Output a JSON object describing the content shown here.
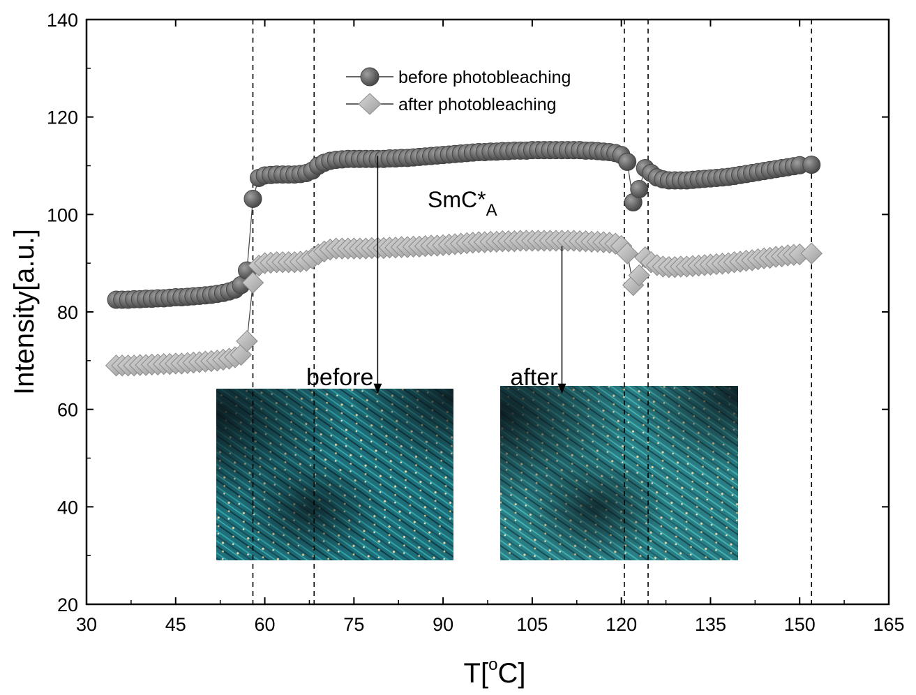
{
  "chart_data": {
    "type": "scatter",
    "xlabel_main": "T[",
    "xlabel_sup": "o",
    "xlabel_end": "C]",
    "ylabel": "Intensity[a.u.]",
    "xlim": [
      30,
      165
    ],
    "ylim": [
      20,
      140
    ],
    "x_ticks": [
      30,
      45,
      60,
      75,
      90,
      105,
      120,
      135,
      150,
      165
    ],
    "y_ticks": [
      20,
      40,
      60,
      80,
      100,
      120,
      140
    ],
    "grid": false,
    "legend_position": "top-center",
    "vlines": [
      58.0,
      68.3,
      120.5,
      124.5,
      152.0
    ],
    "phase_label": {
      "main": "SmC*",
      "sub": "A",
      "x": 87,
      "y": 102
    },
    "annotations": [
      {
        "text": "before",
        "arrow_x": 79,
        "arrow_from_y": 112,
        "arrow_to_y": 65
      },
      {
        "text": "after",
        "arrow_x": 110,
        "arrow_from_y": 93.5,
        "arrow_to_y": 65
      }
    ],
    "series": [
      {
        "name": "before photobleaching",
        "marker": "circle",
        "color": "#6e6e6e",
        "points": [
          [
            35,
            82.5
          ],
          [
            36,
            82.5
          ],
          [
            37,
            82.5
          ],
          [
            38,
            82.6
          ],
          [
            39,
            82.6
          ],
          [
            40,
            82.7
          ],
          [
            41,
            82.7
          ],
          [
            42,
            82.8
          ],
          [
            43,
            82.8
          ],
          [
            44,
            82.9
          ],
          [
            45,
            83.0
          ],
          [
            46,
            83.0
          ],
          [
            47,
            83.1
          ],
          [
            48,
            83.2
          ],
          [
            49,
            83.3
          ],
          [
            50,
            83.4
          ],
          [
            51,
            83.5
          ],
          [
            52,
            83.7
          ],
          [
            53,
            83.9
          ],
          [
            54,
            84.2
          ],
          [
            55,
            84.6
          ],
          [
            56,
            85.5
          ],
          [
            57,
            88.5
          ],
          [
            58,
            103.2
          ],
          [
            59,
            107.5
          ],
          [
            60,
            108.0
          ],
          [
            61,
            108.1
          ],
          [
            62,
            108.2
          ],
          [
            63,
            108.2
          ],
          [
            64,
            108.2
          ],
          [
            65,
            108.2
          ],
          [
            66,
            108.3
          ],
          [
            67,
            108.5
          ],
          [
            68,
            109.0
          ],
          [
            69,
            110.0
          ],
          [
            70,
            110.6
          ],
          [
            71,
            111.0
          ],
          [
            72,
            111.2
          ],
          [
            73,
            111.3
          ],
          [
            74,
            111.4
          ],
          [
            75,
            111.4
          ],
          [
            76,
            111.4
          ],
          [
            77,
            111.4
          ],
          [
            78,
            111.4
          ],
          [
            79,
            111.4
          ],
          [
            80,
            111.4
          ],
          [
            81,
            111.5
          ],
          [
            82,
            111.5
          ],
          [
            83,
            111.6
          ],
          [
            84,
            111.6
          ],
          [
            85,
            111.7
          ],
          [
            86,
            111.8
          ],
          [
            87,
            111.9
          ],
          [
            88,
            112.0
          ],
          [
            89,
            112.1
          ],
          [
            90,
            112.2
          ],
          [
            91,
            112.3
          ],
          [
            92,
            112.4
          ],
          [
            93,
            112.5
          ],
          [
            94,
            112.6
          ],
          [
            95,
            112.7
          ],
          [
            96,
            112.8
          ],
          [
            97,
            112.8
          ],
          [
            98,
            112.9
          ],
          [
            99,
            112.9
          ],
          [
            100,
            113.0
          ],
          [
            101,
            113.0
          ],
          [
            102,
            113.1
          ],
          [
            103,
            113.1
          ],
          [
            104,
            113.1
          ],
          [
            105,
            113.2
          ],
          [
            106,
            113.2
          ],
          [
            107,
            113.2
          ],
          [
            108,
            113.2
          ],
          [
            109,
            113.2
          ],
          [
            110,
            113.2
          ],
          [
            111,
            113.2
          ],
          [
            112,
            113.2
          ],
          [
            113,
            113.2
          ],
          [
            114,
            113.1
          ],
          [
            115,
            113.1
          ],
          [
            116,
            113.0
          ],
          [
            117,
            112.9
          ],
          [
            118,
            112.8
          ],
          [
            119,
            112.6
          ],
          [
            120,
            112.2
          ],
          [
            121,
            110.8
          ],
          [
            122,
            102.5
          ],
          [
            123,
            105.2
          ],
          [
            124,
            109.5
          ],
          [
            125,
            108.5
          ],
          [
            126,
            107.6
          ],
          [
            127,
            107.2
          ],
          [
            128,
            107.0
          ],
          [
            129,
            107.0
          ],
          [
            130,
            107.0
          ],
          [
            131,
            107.0
          ],
          [
            132,
            107.1
          ],
          [
            133,
            107.2
          ],
          [
            134,
            107.3
          ],
          [
            135,
            107.4
          ],
          [
            136,
            107.5
          ],
          [
            137,
            107.6
          ],
          [
            138,
            107.7
          ],
          [
            139,
            107.9
          ],
          [
            140,
            108.1
          ],
          [
            141,
            108.3
          ],
          [
            142,
            108.5
          ],
          [
            143,
            108.7
          ],
          [
            144,
            108.9
          ],
          [
            145,
            109.1
          ],
          [
            146,
            109.3
          ],
          [
            147,
            109.5
          ],
          [
            148,
            109.7
          ],
          [
            149,
            109.9
          ],
          [
            150,
            110.1
          ],
          [
            152,
            110.2
          ]
        ]
      },
      {
        "name": "after photobleaching",
        "marker": "diamond",
        "color": "#b4b4b4",
        "points": [
          [
            35,
            69.0
          ],
          [
            36,
            69.0
          ],
          [
            37,
            69.0
          ],
          [
            38,
            69.0
          ],
          [
            39,
            69.1
          ],
          [
            40,
            69.1
          ],
          [
            41,
            69.2
          ],
          [
            42,
            69.2
          ],
          [
            43,
            69.3
          ],
          [
            44,
            69.3
          ],
          [
            45,
            69.4
          ],
          [
            46,
            69.4
          ],
          [
            47,
            69.5
          ],
          [
            48,
            69.6
          ],
          [
            49,
            69.7
          ],
          [
            50,
            69.8
          ],
          [
            51,
            69.9
          ],
          [
            52,
            70.0
          ],
          [
            53,
            70.2
          ],
          [
            54,
            70.4
          ],
          [
            55,
            70.7
          ],
          [
            56,
            71.2
          ],
          [
            57,
            74.0
          ],
          [
            58,
            86.0
          ],
          [
            59,
            89.5
          ],
          [
            60,
            90.0
          ],
          [
            61,
            90.1
          ],
          [
            62,
            90.2
          ],
          [
            63,
            90.2
          ],
          [
            64,
            90.2
          ],
          [
            65,
            90.2
          ],
          [
            66,
            90.3
          ],
          [
            67,
            90.5
          ],
          [
            68,
            91.0
          ],
          [
            69,
            91.8
          ],
          [
            70,
            92.4
          ],
          [
            71,
            92.8
          ],
          [
            72,
            93.0
          ],
          [
            73,
            93.0
          ],
          [
            74,
            93.0
          ],
          [
            75,
            93.0
          ],
          [
            76,
            93.0
          ],
          [
            77,
            93.0
          ],
          [
            78,
            93.1
          ],
          [
            79,
            93.1
          ],
          [
            80,
            93.1
          ],
          [
            81,
            93.2
          ],
          [
            82,
            93.2
          ],
          [
            83,
            93.3
          ],
          [
            84,
            93.3
          ],
          [
            85,
            93.4
          ],
          [
            86,
            93.4
          ],
          [
            87,
            93.5
          ],
          [
            88,
            93.6
          ],
          [
            89,
            93.6
          ],
          [
            90,
            93.7
          ],
          [
            91,
            93.8
          ],
          [
            92,
            93.9
          ],
          [
            93,
            94.0
          ],
          [
            94,
            94.1
          ],
          [
            95,
            94.2
          ],
          [
            96,
            94.3
          ],
          [
            97,
            94.3
          ],
          [
            98,
            94.4
          ],
          [
            99,
            94.4
          ],
          [
            100,
            94.5
          ],
          [
            101,
            94.5
          ],
          [
            102,
            94.5
          ],
          [
            103,
            94.6
          ],
          [
            104,
            94.6
          ],
          [
            105,
            94.6
          ],
          [
            106,
            94.6
          ],
          [
            107,
            94.6
          ],
          [
            108,
            94.6
          ],
          [
            109,
            94.6
          ],
          [
            110,
            94.6
          ],
          [
            111,
            94.6
          ],
          [
            112,
            94.6
          ],
          [
            113,
            94.5
          ],
          [
            114,
            94.5
          ],
          [
            115,
            94.4
          ],
          [
            116,
            94.4
          ],
          [
            117,
            94.3
          ],
          [
            118,
            94.2
          ],
          [
            119,
            94.0
          ],
          [
            120,
            93.5
          ],
          [
            121,
            92.0
          ],
          [
            122,
            85.5
          ],
          [
            123,
            87.5
          ],
          [
            124,
            91.2
          ],
          [
            125,
            90.2
          ],
          [
            126,
            89.6
          ],
          [
            127,
            89.3
          ],
          [
            128,
            89.2
          ],
          [
            129,
            89.2
          ],
          [
            130,
            89.3
          ],
          [
            131,
            89.3
          ],
          [
            132,
            89.4
          ],
          [
            133,
            89.5
          ],
          [
            134,
            89.6
          ],
          [
            135,
            89.7
          ],
          [
            136,
            89.8
          ],
          [
            137,
            89.9
          ],
          [
            138,
            90.0
          ],
          [
            139,
            90.2
          ],
          [
            140,
            90.3
          ],
          [
            141,
            90.5
          ],
          [
            142,
            90.6
          ],
          [
            143,
            90.8
          ],
          [
            144,
            91.0
          ],
          [
            145,
            91.1
          ],
          [
            146,
            91.3
          ],
          [
            147,
            91.4
          ],
          [
            148,
            91.6
          ],
          [
            149,
            91.7
          ],
          [
            150,
            91.8
          ],
          [
            152,
            92.0
          ]
        ]
      }
    ]
  }
}
